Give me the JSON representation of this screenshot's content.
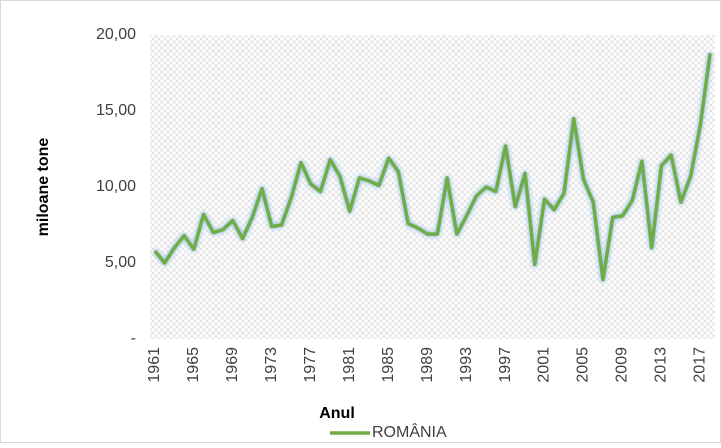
{
  "chart_data": {
    "type": "line",
    "x_label": "Anul",
    "y_label": "miloane tone",
    "x": [
      1961,
      1962,
      1963,
      1964,
      1965,
      1966,
      1967,
      1968,
      1969,
      1970,
      1971,
      1972,
      1973,
      1974,
      1975,
      1976,
      1977,
      1978,
      1979,
      1980,
      1981,
      1982,
      1983,
      1984,
      1985,
      1986,
      1987,
      1988,
      1989,
      1990,
      1991,
      1992,
      1993,
      1994,
      1995,
      1996,
      1997,
      1998,
      1999,
      2000,
      2001,
      2002,
      2003,
      2004,
      2005,
      2006,
      2007,
      2008,
      2009,
      2010,
      2011,
      2012,
      2013,
      2014,
      2015,
      2016,
      2017,
      2018
    ],
    "series": [
      {
        "name": "ROMÂNIA",
        "color": "#70ad47",
        "values": [
          5.8,
          5.0,
          6.0,
          6.8,
          5.9,
          8.2,
          7.0,
          7.2,
          7.8,
          6.6,
          8.0,
          9.9,
          7.4,
          7.5,
          9.3,
          11.6,
          10.2,
          9.7,
          11.8,
          10.7,
          8.4,
          10.6,
          10.4,
          10.1,
          11.9,
          11.0,
          7.6,
          7.3,
          6.9,
          6.9,
          10.6,
          6.9,
          8.1,
          9.4,
          10.0,
          9.7,
          12.7,
          8.7,
          10.9,
          4.9,
          9.2,
          8.5,
          9.6,
          14.5,
          10.5,
          9.0,
          3.9,
          8.0,
          8.1,
          9.1,
          11.7,
          6.0,
          11.4,
          12.1,
          9.0,
          10.7,
          14.1,
          18.8
        ]
      }
    ],
    "xlim": [
      1960.5,
      2018.5
    ],
    "xticks": [
      1961,
      1965,
      1969,
      1973,
      1977,
      1981,
      1985,
      1989,
      1993,
      1997,
      2001,
      2005,
      2009,
      2013,
      2017
    ],
    "ylim": [
      0,
      20
    ],
    "yticks": [
      {
        "value": 0,
        "label": "-"
      },
      {
        "value": 5,
        "label": "5,00"
      },
      {
        "value": 10,
        "label": "10,00"
      },
      {
        "value": 15,
        "label": "15,00"
      },
      {
        "value": 20,
        "label": "20,00"
      }
    ],
    "grid": false,
    "legend": "bottom"
  }
}
